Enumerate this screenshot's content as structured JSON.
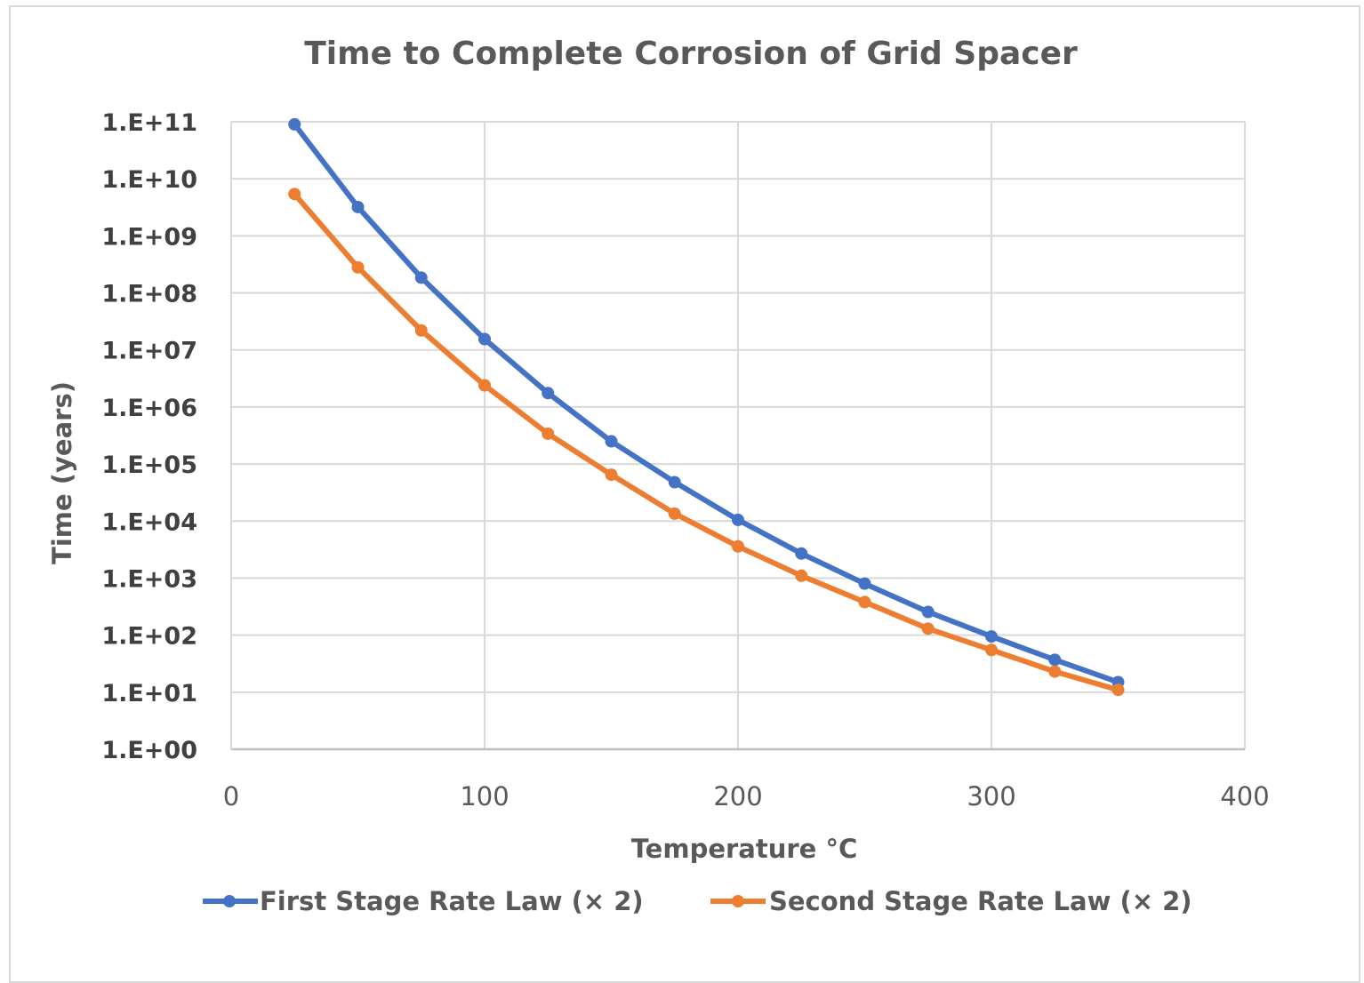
{
  "chart_data": {
    "type": "line",
    "title": "Time to Complete Corrosion of Grid Spacer",
    "xlabel": "Temperature °C",
    "ylabel": "Time (years)",
    "xlim": [
      0,
      400
    ],
    "x_ticks": [
      "0",
      "100",
      "200",
      "300",
      "400"
    ],
    "x_tick_values": [
      0,
      100,
      200,
      300,
      400
    ],
    "yscale": "log",
    "ylim": [
      1,
      100000000000
    ],
    "y_ticks": [
      "1.E+00",
      "1.E+01",
      "1.E+02",
      "1.E+03",
      "1.E+04",
      "1.E+05",
      "1.E+06",
      "1.E+07",
      "1.E+08",
      "1.E+09",
      "1.E+10",
      "1.E+11"
    ],
    "grid": true,
    "legend_position": "bottom",
    "x": [
      25,
      50,
      75,
      100,
      125,
      150,
      175,
      200,
      225,
      250,
      275,
      300,
      325,
      350
    ],
    "series": [
      {
        "name": "First Stage Rate Law (× 2)",
        "color": "#4472c4",
        "values": [
          90000000000,
          3200000000,
          185000000,
          15500000,
          1750000,
          250000,
          48000,
          10500,
          2700,
          800,
          255,
          95,
          37,
          15
        ]
      },
      {
        "name": "Second Stage Rate Law (× 2)",
        "color": "#ed7d31",
        "values": [
          5400000000,
          280000000,
          22000000,
          2400000,
          340000,
          65000,
          13500,
          3600,
          1100,
          380,
          130,
          55,
          23,
          11
        ]
      }
    ]
  }
}
